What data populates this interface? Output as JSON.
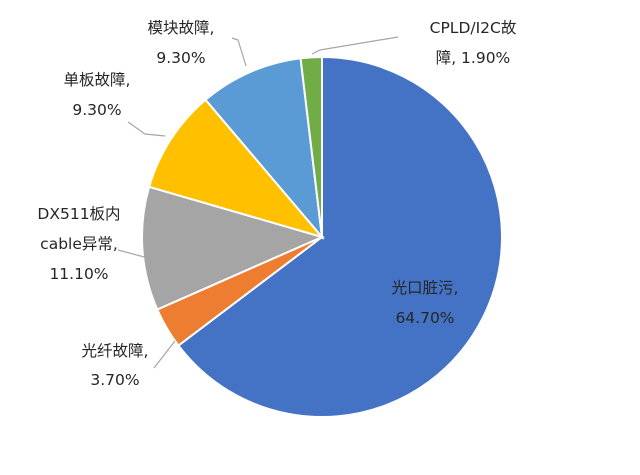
{
  "chart_data": {
    "type": "pie",
    "title": "",
    "legend": "none",
    "start_angle_deg": 0,
    "direction": "clockwise",
    "slices": [
      {
        "label_lines": [
          "光口脏污,",
          "64.70%"
        ],
        "value": 64.7,
        "color": "#4472c4"
      },
      {
        "label_lines": [
          "光纤故障,",
          "3.70%"
        ],
        "value": 3.7,
        "color": "#ed7d31"
      },
      {
        "label_lines": [
          "DX511板内",
          "cable异常,",
          "11.10%"
        ],
        "value": 11.1,
        "color": "#a5a5a5"
      },
      {
        "label_lines": [
          "单板故障,",
          "9.30%"
        ],
        "value": 9.3,
        "color": "#ffc000"
      },
      {
        "label_lines": [
          "模块故障,",
          "9.30%"
        ],
        "value": 9.3,
        "color": "#5b9bd5"
      },
      {
        "label_lines": [
          "CPLD/I2C故",
          "障, 1.90%"
        ],
        "value": 1.9,
        "color": "#70ad47"
      }
    ]
  }
}
